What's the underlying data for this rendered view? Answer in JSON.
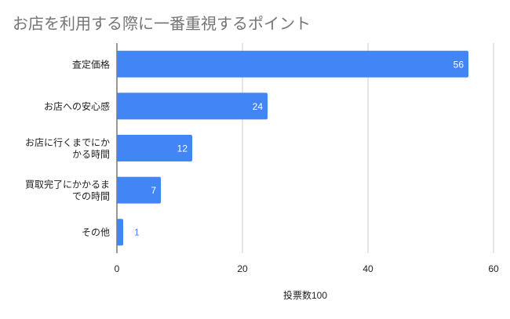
{
  "chart_data": {
    "type": "bar",
    "orientation": "horizontal",
    "title": "お店を利用する際に一番重視するポイント",
    "categories": [
      [
        "査定価格"
      ],
      [
        "お店への安心感"
      ],
      [
        "お店に行くまでにか",
        "かる時間"
      ],
      [
        "買取完了にかかるま",
        "での時間"
      ],
      [
        "その他"
      ]
    ],
    "values": [
      56,
      24,
      12,
      7,
      1
    ],
    "xlabel": "投票数100",
    "xlim": [
      0,
      60
    ],
    "xticks": [
      "0",
      "20",
      "40",
      "60"
    ],
    "grid": true,
    "legend": "none",
    "bar_color": "#4285f4",
    "title_color": "#757575"
  }
}
